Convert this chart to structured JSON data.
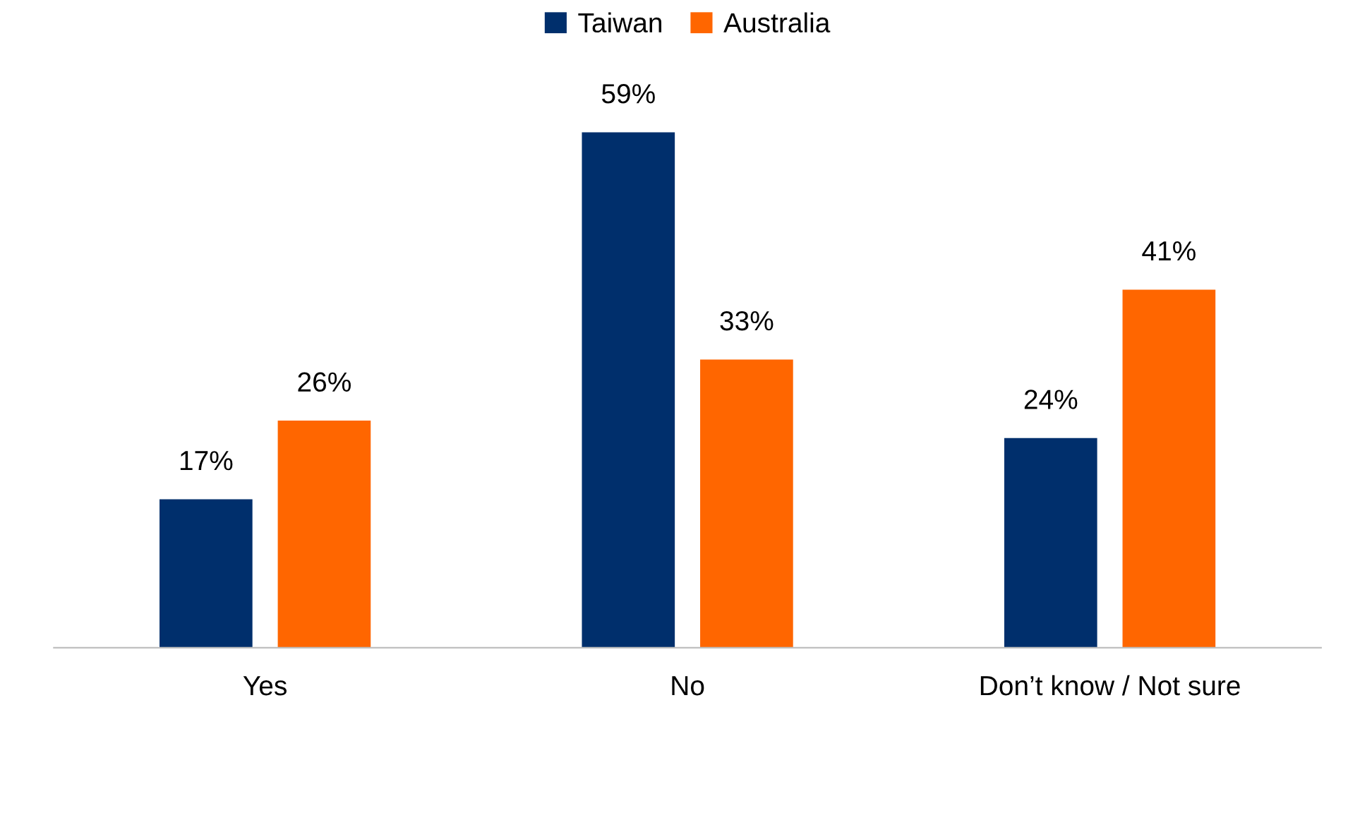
{
  "chart_data": {
    "type": "bar",
    "categories": [
      "Yes",
      "No",
      "Don’t know / Not sure"
    ],
    "series": [
      {
        "name": "Taiwan",
        "color": "#002f6c",
        "values": [
          17,
          59,
          24
        ],
        "value_labels": [
          "17%",
          "59%",
          "24%"
        ]
      },
      {
        "name": "Australia",
        "color": "#ff6600",
        "values": [
          26,
          33,
          41
        ],
        "value_labels": [
          "26%",
          "33%",
          "41%"
        ]
      }
    ],
    "legend": "top",
    "grid": false,
    "tick_labels": "x"
  }
}
